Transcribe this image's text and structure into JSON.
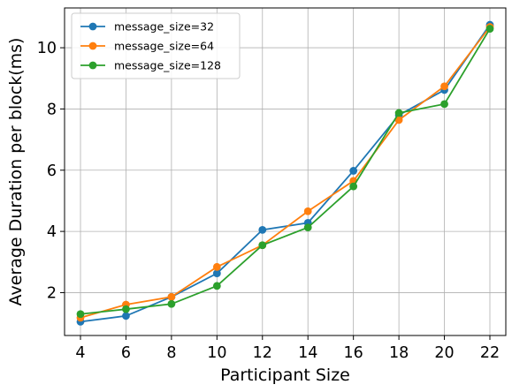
{
  "chart_data": {
    "type": "line",
    "xlabel": "Participant Size",
    "ylabel": "Average Duration per block(ms)",
    "x": [
      4,
      6,
      8,
      10,
      12,
      14,
      16,
      18,
      20,
      22
    ],
    "xlim": [
      3.3,
      22.7
    ],
    "ylim": [
      0.6,
      11.3
    ],
    "xticks": [
      4,
      6,
      8,
      10,
      12,
      14,
      16,
      18,
      20,
      22
    ],
    "yticks": [
      2,
      4,
      6,
      8,
      10
    ],
    "grid": true,
    "legend_position": "top-left",
    "series": [
      {
        "name": "message_size=32",
        "color": "#1f77b4",
        "values": [
          1.05,
          1.24,
          1.86,
          2.63,
          4.05,
          4.28,
          5.98,
          7.8,
          8.62,
          10.75
        ]
      },
      {
        "name": "message_size=64",
        "color": "#ff7f0e",
        "values": [
          1.18,
          1.61,
          1.86,
          2.84,
          3.55,
          4.66,
          5.65,
          7.64,
          8.74,
          10.68
        ]
      },
      {
        "name": "message_size=128",
        "color": "#2ca02c",
        "values": [
          1.3,
          1.46,
          1.63,
          2.22,
          3.55,
          4.13,
          5.47,
          7.87,
          8.16,
          10.62
        ]
      }
    ]
  }
}
